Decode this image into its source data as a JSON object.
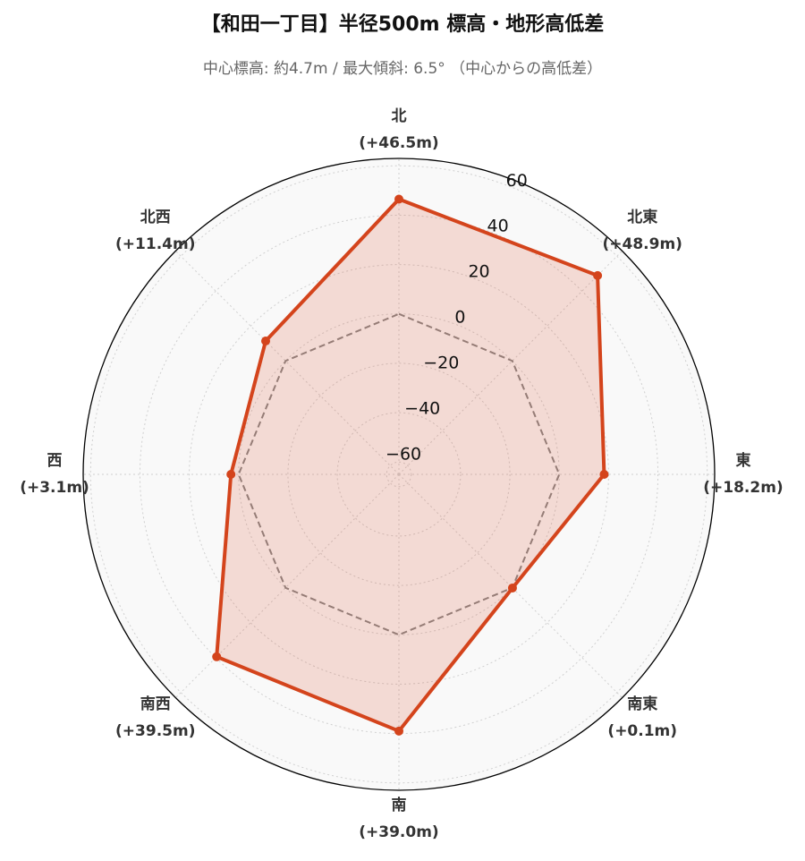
{
  "chart_data": {
    "type": "radar",
    "title": "【和田一丁目】半径500m 標高・地形高低差",
    "subtitle": "中心標高: 約4.7m / 最大傾斜: 6.5° （中心からの高低差）",
    "categories": [
      "北",
      "北東",
      "東",
      "南東",
      "南",
      "南西",
      "西",
      "北西"
    ],
    "values": [
      46.5,
      48.9,
      18.2,
      0.1,
      39.0,
      39.5,
      3.1,
      11.4
    ],
    "value_labels": [
      "(+46.5m)",
      "(+48.9m)",
      "(+18.2m)",
      "(+0.1m)",
      "(+39.0m)",
      "(+39.5m)",
      "(+3.1m)",
      "(+11.4m)"
    ],
    "color": "#d4441c",
    "ylim": [
      -65,
      63
    ],
    "yticks": [
      {
        "value": -60,
        "label": "−60"
      },
      {
        "value": -40,
        "label": "−40"
      },
      {
        "value": -20,
        "label": "−20"
      },
      0,
      20,
      40,
      60
    ],
    "grid": true
  }
}
